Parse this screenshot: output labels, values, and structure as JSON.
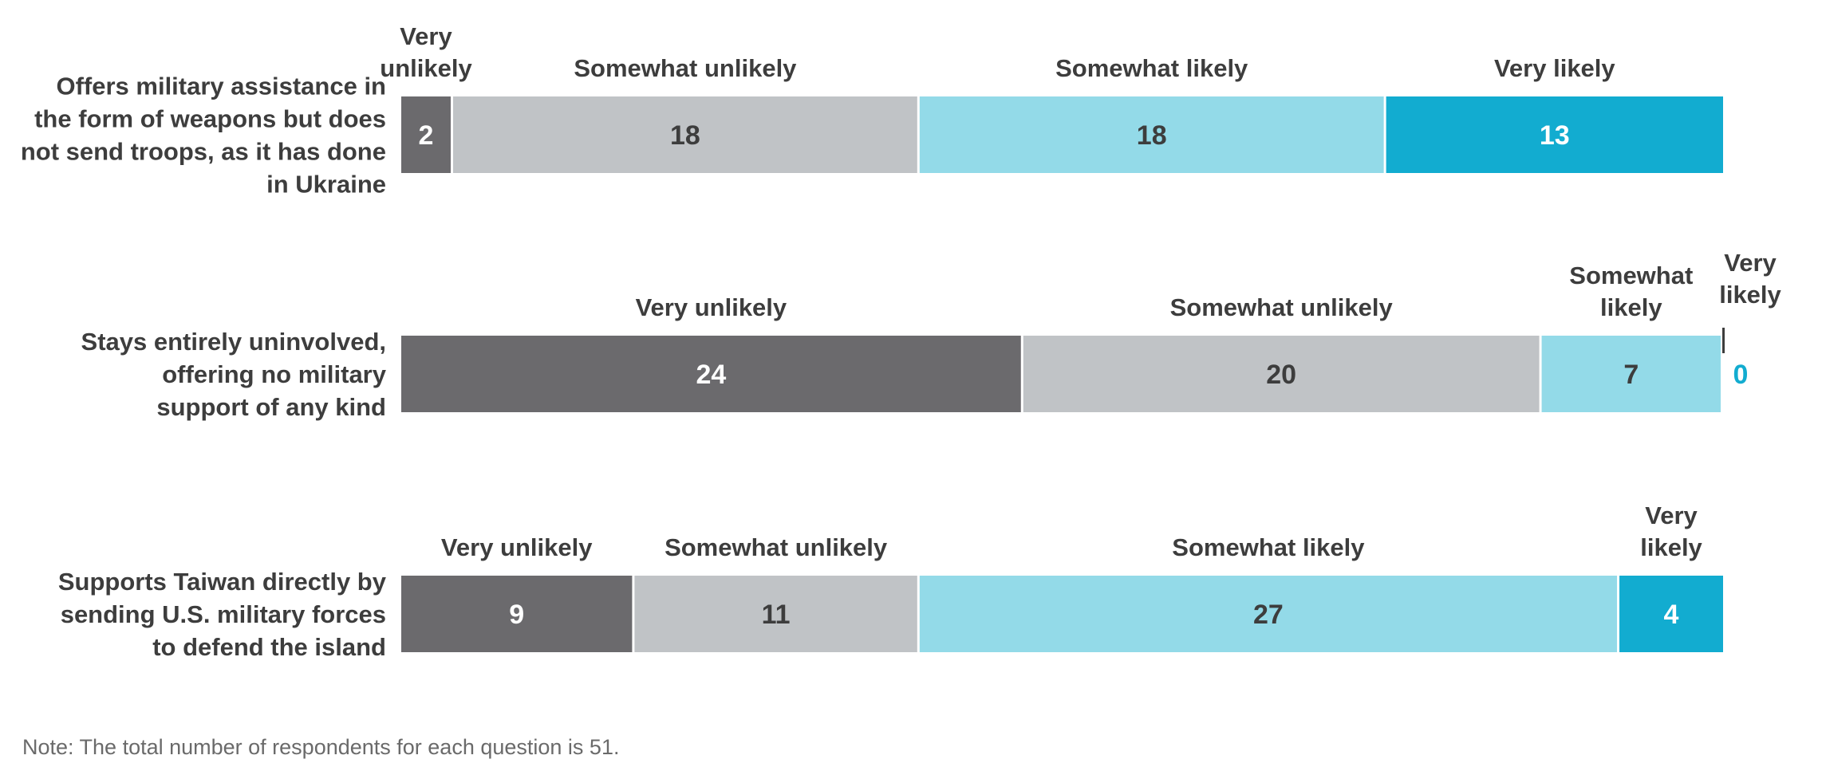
{
  "chart_data": {
    "type": "bar",
    "orientation": "horizontal",
    "stacked": true,
    "categories": [
      [
        "Offers military assistance in",
        "the form of weapons but does",
        "not send troops, as it has done",
        "in Ukraine"
      ],
      [
        "Stays entirely uninvolved,",
        "offering no military",
        "support of any kind"
      ],
      [
        "Supports Taiwan directly by",
        "sending U.S. military forces",
        "to defend the island"
      ]
    ],
    "series": [
      {
        "name": "Very unlikely",
        "color": "#6b6a6d",
        "label_color": "#ffffff",
        "values": [
          2,
          24,
          9
        ]
      },
      {
        "name": "Somewhat unlikely",
        "color": "#c0c3c6",
        "label_color": "#3d3d3d",
        "values": [
          18,
          20,
          11
        ]
      },
      {
        "name": "Somewhat likely",
        "color": "#93dae8",
        "label_color": "#3d3d3d",
        "values": [
          18,
          7,
          27
        ]
      },
      {
        "name": "Very likely",
        "color": "#12acd0",
        "label_color": "#ffffff",
        "values": [
          13,
          0,
          4
        ]
      }
    ],
    "xlim": [
      0,
      51
    ],
    "grid": false,
    "legend": "none",
    "segment_headers": [
      [
        [
          "Very",
          "unlikely"
        ],
        [
          "Somewhat unlikely"
        ],
        [
          "Somewhat likely"
        ],
        [
          "Very likely"
        ]
      ],
      [
        [
          "Very unlikely"
        ],
        [
          "Somewhat unlikely"
        ],
        [
          "Somewhat",
          "likely"
        ],
        [
          "Very",
          "likely"
        ]
      ],
      [
        [
          "Very unlikely"
        ],
        [
          "Somewhat unlikely"
        ],
        [
          "Somewhat likely"
        ],
        [
          "Very",
          "likely"
        ]
      ]
    ],
    "zero_value_color": "#12acd0"
  },
  "note": "Note: The total number of respondents for each question is 51."
}
